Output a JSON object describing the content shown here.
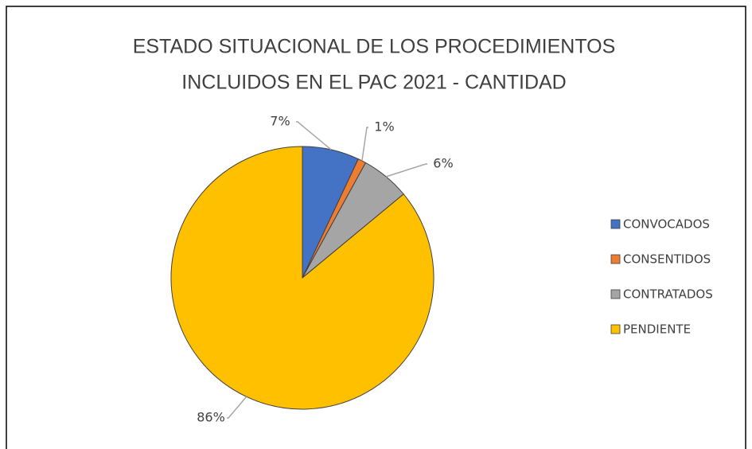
{
  "chart_data": {
    "type": "pie",
    "title": "ESTADO SITUACIONAL DE LOS PROCEDIMIENTOS INCLUIDOS  EN EL PAC 2021 - CANTIDAD",
    "title_lines": [
      "ESTADO SITUACIONAL DE LOS PROCEDIMIENTOS",
      "INCLUIDOS  EN EL PAC 2021 - CANTIDAD"
    ],
    "categories": [
      "CONVOCADOS",
      "CONSENTIDOS",
      "CONTRATADOS",
      "PENDIENTE"
    ],
    "values": [
      7,
      1,
      6,
      86
    ],
    "value_labels": [
      "7%",
      "1%",
      "6%",
      "86%"
    ],
    "colors": [
      "#4472c4",
      "#ed7d31",
      "#a5a5a5",
      "#ffc000"
    ],
    "legend": "right"
  }
}
